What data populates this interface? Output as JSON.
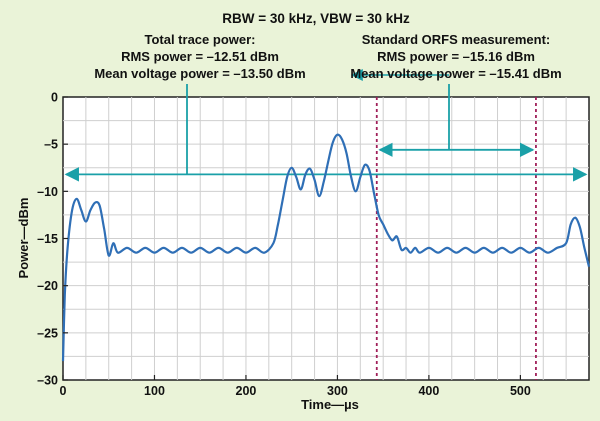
{
  "chart_data": {
    "type": "line",
    "title": "RBW = 30 kHz, VBW = 30 kHz",
    "xlabel": "Time—µs",
    "ylabel": "Power—dBm",
    "xlim": [
      0,
      575
    ],
    "ylim": [
      -30,
      0
    ],
    "xticks": [
      0,
      100,
      200,
      300,
      400,
      500
    ],
    "yticks": [
      0,
      -5,
      -10,
      -15,
      -20,
      -25,
      -30
    ],
    "grid": true,
    "colors": {
      "trace": "#2f6fb6",
      "arrows": "#1aa0a8",
      "markers": "#a0205a",
      "background": "#eaf3d8"
    },
    "series": [
      {
        "x": [
          0,
          2,
          5,
          10,
          15,
          20,
          25,
          30,
          35,
          40,
          45,
          50,
          55,
          60,
          70,
          80,
          90,
          100,
          110,
          120,
          130,
          140,
          150,
          160,
          170,
          180,
          190,
          200,
          210,
          220,
          230,
          235,
          240,
          245,
          250,
          255,
          260,
          265,
          270,
          275,
          280,
          285,
          290,
          295,
          300,
          305,
          310,
          315,
          320,
          325,
          330,
          335,
          340,
          345,
          350,
          355,
          360,
          365,
          370,
          375,
          380,
          385,
          390,
          400,
          410,
          420,
          430,
          440,
          450,
          460,
          470,
          480,
          490,
          500,
          510,
          520,
          530,
          540,
          550,
          555,
          560,
          565,
          570,
          575
        ],
        "y": [
          -28,
          -21,
          -16,
          -12,
          -10.8,
          -12,
          -13.2,
          -12,
          -11.2,
          -11.5,
          -14,
          -16.8,
          -15.5,
          -16.5,
          -16,
          -16.5,
          -16,
          -16.5,
          -16,
          -16.5,
          -16,
          -16.5,
          -16,
          -16.5,
          -16,
          -16.5,
          -16,
          -16.5,
          -16,
          -16.5,
          -15.5,
          -13.5,
          -11,
          -8.5,
          -7.5,
          -8.5,
          -9.8,
          -8.2,
          -7.6,
          -8.8,
          -10.5,
          -9,
          -6.8,
          -4.8,
          -4,
          -4.5,
          -6,
          -8.5,
          -10,
          -8.5,
          -7.2,
          -7.8,
          -10.2,
          -12.5,
          -13.5,
          -14.5,
          -15.2,
          -14.8,
          -16.2,
          -16,
          -16.5,
          -16,
          -16.5,
          -16,
          -16.5,
          -16,
          -16.5,
          -16,
          -16.5,
          -16,
          -16.5,
          -16,
          -16.5,
          -16,
          -16.5,
          -16,
          -16.5,
          -16,
          -15.5,
          -13.5,
          -12.8,
          -13.8,
          -16,
          -18
        ]
      }
    ],
    "annotations": {
      "total_title": "Total trace power:",
      "total_rms": "RMS power = –12.51 dBm",
      "total_mean": "Mean voltage power = –13.50 dBm",
      "orfs_title": "Standard ORFS measurement:",
      "orfs_rms": "RMS power = –15.16 dBm",
      "orfs_mean": "Mean voltage power = –15.41 dBm"
    },
    "total_span_us": [
      0,
      575
    ],
    "orfs_span_us": [
      343,
      517
    ]
  }
}
